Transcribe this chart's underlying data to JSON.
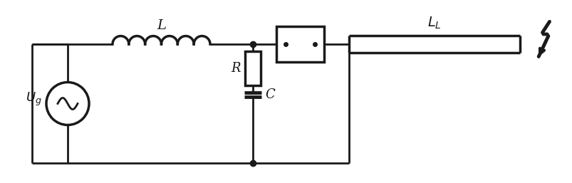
{
  "bg_color": "#ffffff",
  "line_color": "#1a1a1a",
  "line_width": 2.0,
  "label_L": "L",
  "label_LL": "L_L",
  "label_R": "R",
  "label_C": "C",
  "label_Ug": "U_g",
  "lw_thick": 2.5
}
